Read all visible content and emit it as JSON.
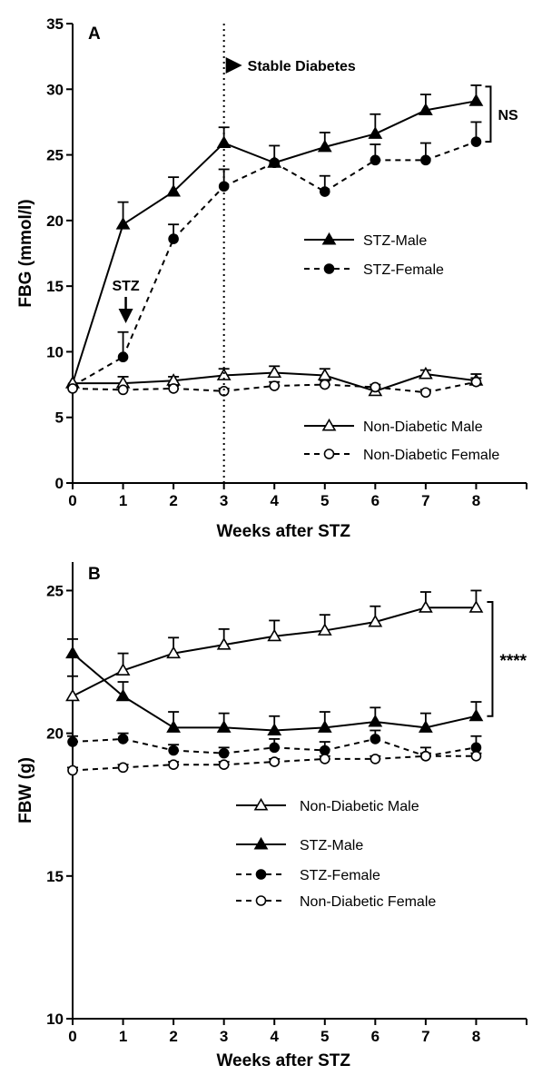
{
  "chart_data": [
    {
      "type": "line",
      "panel_label": "A",
      "xlabel": "Weeks after STZ",
      "ylabel": "FBG (mmol/l)",
      "x": [
        0,
        1,
        2,
        3,
        4,
        5,
        6,
        7,
        8
      ],
      "xlim": [
        0,
        9
      ],
      "ylim": [
        0,
        35
      ],
      "x_ticks": [
        0,
        1,
        2,
        3,
        4,
        5,
        6,
        7,
        8
      ],
      "y_ticks": [
        0,
        5,
        10,
        15,
        20,
        25,
        30,
        35
      ],
      "grid": false,
      "series": [
        {
          "name": "STZ-Male",
          "marker": "filled-triangle",
          "line": "solid",
          "values": [
            7.6,
            19.7,
            22.2,
            25.9,
            24.4,
            25.6,
            26.6,
            28.4,
            29.1
          ],
          "error": [
            0,
            1.7,
            1.1,
            1.2,
            1.3,
            1.1,
            1.5,
            1.2,
            1.2
          ]
        },
        {
          "name": "STZ-Female",
          "marker": "filled-circle",
          "line": "dashed",
          "values": [
            7.4,
            9.6,
            18.6,
            22.6,
            24.4,
            22.2,
            24.6,
            24.6,
            26.0
          ],
          "error": [
            0,
            1.9,
            1.1,
            1.3,
            0,
            1.2,
            1.2,
            1.3,
            1.5
          ]
        },
        {
          "name": "Non-Diabetic Male",
          "marker": "open-triangle",
          "line": "solid",
          "values": [
            7.6,
            7.6,
            7.8,
            8.2,
            8.4,
            8.2,
            7.0,
            8.3,
            7.8
          ],
          "error": [
            0,
            0.5,
            0.3,
            0.5,
            0.5,
            0.5,
            0.3,
            0.3,
            0.5
          ]
        },
        {
          "name": "Non-Diabetic Female",
          "marker": "open-circle",
          "line": "dashed",
          "values": [
            7.2,
            7.1,
            7.2,
            7.0,
            7.4,
            7.5,
            7.3,
            6.9,
            7.7
          ],
          "error": [
            0,
            0.2,
            0.2,
            0.2,
            0.3,
            0.3,
            0.2,
            0.2,
            0.3
          ]
        }
      ],
      "annotations": [
        {
          "text": "Stable Diabetes",
          "x": 3
        },
        {
          "text": "STZ",
          "x": 1
        },
        {
          "text": "NS",
          "between": [
            "STZ-Male",
            "STZ-Female"
          ],
          "x": 8
        }
      ],
      "legend": [
        {
          "group": "upper",
          "entries": [
            "STZ-Male",
            "STZ-Female"
          ]
        },
        {
          "group": "lower",
          "entries": [
            "Non-Diabetic Male",
            "Non-Diabetic Female"
          ]
        }
      ]
    },
    {
      "type": "line",
      "panel_label": "B",
      "xlabel": "Weeks after STZ",
      "ylabel": "FBW (g)",
      "x": [
        0,
        1,
        2,
        3,
        4,
        5,
        6,
        7,
        8
      ],
      "xlim": [
        0,
        9
      ],
      "ylim": [
        10,
        26
      ],
      "x_ticks": [
        0,
        1,
        2,
        3,
        4,
        5,
        6,
        7,
        8
      ],
      "y_ticks": [
        10,
        15,
        20,
        25
      ],
      "grid": false,
      "series": [
        {
          "name": "Non-Diabetic Male",
          "marker": "open-triangle",
          "line": "solid",
          "values": [
            21.3,
            22.2,
            22.8,
            23.1,
            23.4,
            23.6,
            23.9,
            24.4,
            24.4
          ],
          "error": [
            0.7,
            0.6,
            0.55,
            0.55,
            0.55,
            0.55,
            0.55,
            0.55,
            0.6
          ]
        },
        {
          "name": "STZ-Male",
          "marker": "filled-triangle",
          "line": "solid",
          "values": [
            22.8,
            21.3,
            20.2,
            20.2,
            20.1,
            20.2,
            20.4,
            20.2,
            20.6
          ],
          "error": [
            0.5,
            0.5,
            0.55,
            0.5,
            0.5,
            0.55,
            0.5,
            0.5,
            0.5
          ]
        },
        {
          "name": "STZ-Female",
          "marker": "filled-circle",
          "line": "dashed",
          "values": [
            19.7,
            19.8,
            19.4,
            19.3,
            19.5,
            19.4,
            19.8,
            19.2,
            19.5
          ],
          "error": [
            0.2,
            0.2,
            0.2,
            0.2,
            0.3,
            0.3,
            0.3,
            0.3,
            0.4
          ]
        },
        {
          "name": "Non-Diabetic Female",
          "marker": "open-circle",
          "line": "dashed",
          "values": [
            18.7,
            18.8,
            18.9,
            18.9,
            19.0,
            19.1,
            19.1,
            19.2,
            19.2
          ],
          "error": [
            0.1,
            0.1,
            0.1,
            0.1,
            0.1,
            0.1,
            0.1,
            0.1,
            0.1
          ]
        }
      ],
      "annotations": [
        {
          "text": "****",
          "between": [
            "Non-Diabetic Male",
            "STZ-Male"
          ],
          "x": 8
        }
      ],
      "legend": [
        {
          "group": "main",
          "entries": [
            "Non-Diabetic Male",
            "STZ-Male",
            "STZ-Female",
            "Non-Diabetic Female"
          ]
        }
      ]
    }
  ]
}
